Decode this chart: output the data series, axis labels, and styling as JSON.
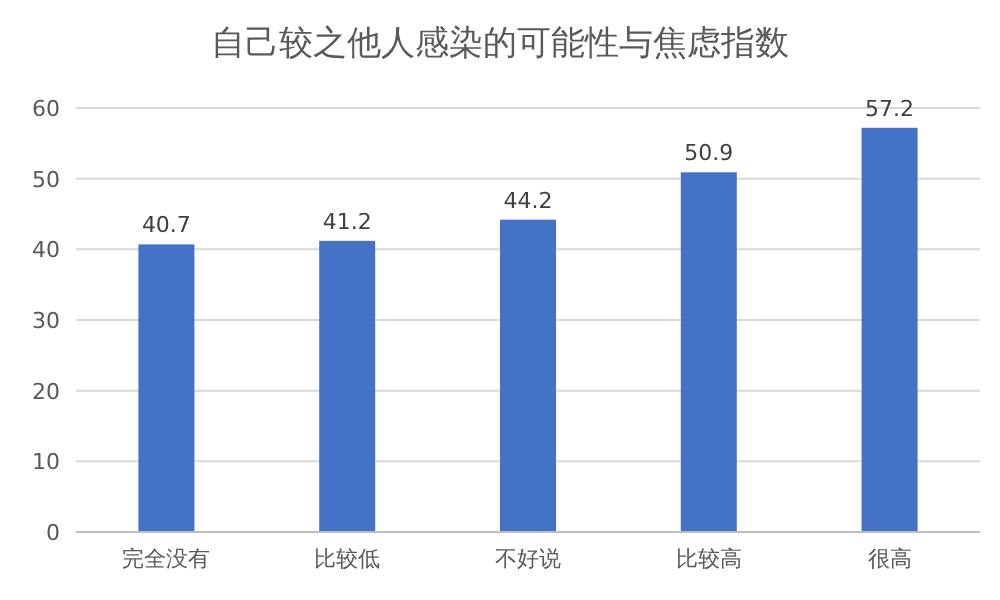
{
  "chart_data": {
    "type": "bar",
    "title": "自己较之他人感染的可能性与焦虑指数",
    "categories": [
      "完全没有",
      "比较低",
      "不好说",
      "比较高",
      "很高"
    ],
    "values": [
      40.7,
      41.2,
      44.2,
      50.9,
      57.2
    ],
    "color": "#4472c4",
    "ylim": [
      0,
      60
    ],
    "yticks": [
      0,
      10,
      20,
      30,
      40,
      50,
      60
    ],
    "grid": "y",
    "data_labels": true
  }
}
